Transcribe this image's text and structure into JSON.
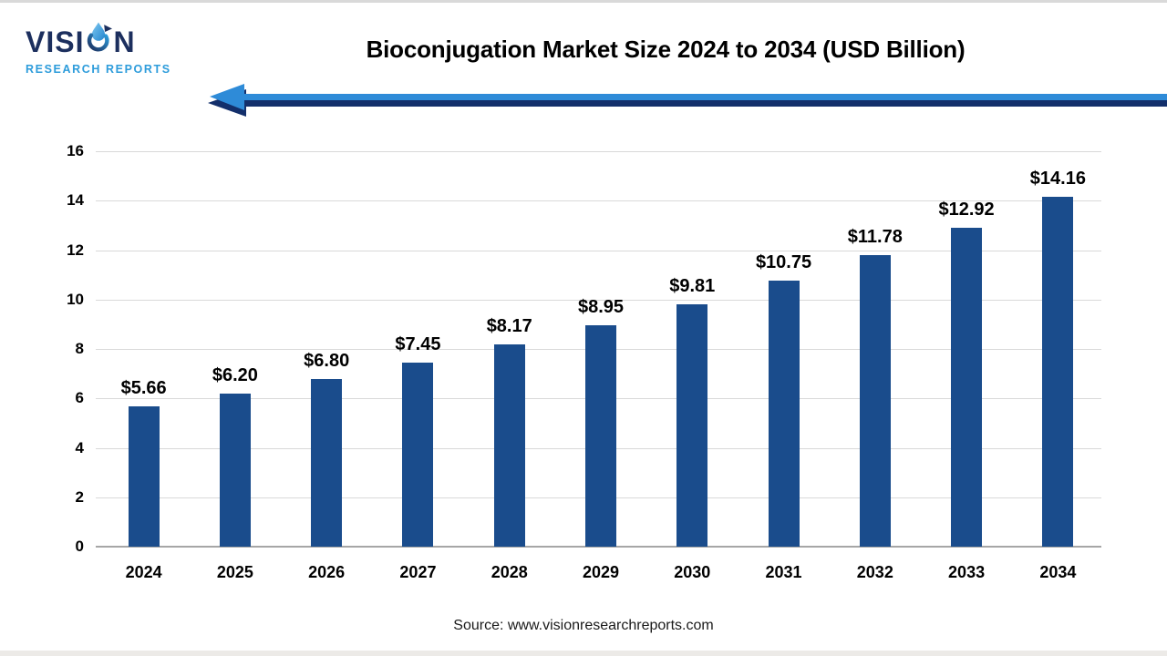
{
  "page": {
    "title": "Bioconjugation Market Size 2024 to 2034 (USD Billion)",
    "source": "Source: www.visionresearchreports.com",
    "background": "#ffffff"
  },
  "logo": {
    "brand_left": "VISI",
    "brand_right": "N",
    "brand_subtitle": "RESEARCH REPORTS",
    "navy": "#1c2f5e",
    "light_blue": "#2d9cdb"
  },
  "decor": {
    "arrow_light_blue": "#2e8bd8",
    "arrow_navy": "#132f6b"
  },
  "chart_data": {
    "type": "bar",
    "title": "Bioconjugation Market Size 2024 to 2034 (USD Billion)",
    "categories": [
      "2024",
      "2025",
      "2026",
      "2027",
      "2028",
      "2029",
      "2030",
      "2031",
      "2032",
      "2033",
      "2034"
    ],
    "values": [
      5.66,
      6.2,
      6.8,
      7.45,
      8.17,
      8.95,
      9.81,
      10.75,
      11.78,
      12.92,
      14.16
    ],
    "value_labels": [
      "$5.66",
      "$6.20",
      "$6.80",
      "$7.45",
      "$8.17",
      "$8.95",
      "$9.81",
      "$10.75",
      "$11.78",
      "$12.92",
      "$14.16"
    ],
    "xlabel": "",
    "ylabel": "",
    "ylim": [
      0,
      16
    ],
    "yticks": [
      0,
      2,
      4,
      6,
      8,
      10,
      12,
      14,
      16
    ],
    "grid": true,
    "legend": false,
    "bar_color": "#1a4c8c",
    "gridline_color": "#d9d9d9",
    "axis_line_color": "#a6a6a6",
    "label_color": "#000000"
  }
}
